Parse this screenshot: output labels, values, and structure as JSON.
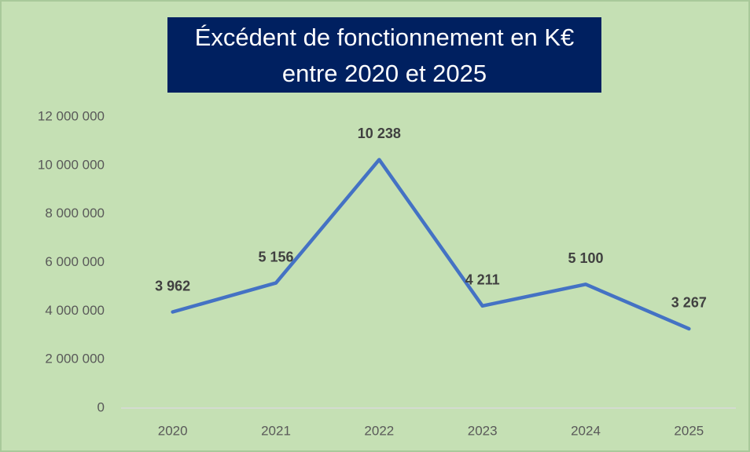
{
  "chart_data": {
    "type": "line",
    "title": [
      "Éxcédent de fonctionnement en K€",
      "entre 2020 et 2025"
    ],
    "categories": [
      "2020",
      "2021",
      "2022",
      "2023",
      "2024",
      "2025"
    ],
    "series": [
      {
        "name": "Éxcédent de fonctionnement",
        "color": "#4472c4",
        "values": [
          3962000,
          5156000,
          10238000,
          4211000,
          5100000,
          3267000
        ],
        "value_labels": [
          "3 962",
          "5 156",
          "10 238",
          "4 211",
          "5 100",
          "3 267"
        ]
      }
    ],
    "ylim": [
      0,
      12000000
    ],
    "yticks": [
      0,
      {
        "value": 2000000,
        "label": "2 000 000"
      },
      {
        "value": 4000000,
        "label": "4 000 000"
      },
      {
        "value": 6000000,
        "label": "6 000 000"
      },
      {
        "value": 8000000,
        "label": "8 000 000"
      },
      {
        "value": 10000000,
        "label": "10 000 000"
      },
      {
        "value": 12000000,
        "label": "12 000 000"
      }
    ],
    "grid": false
  }
}
